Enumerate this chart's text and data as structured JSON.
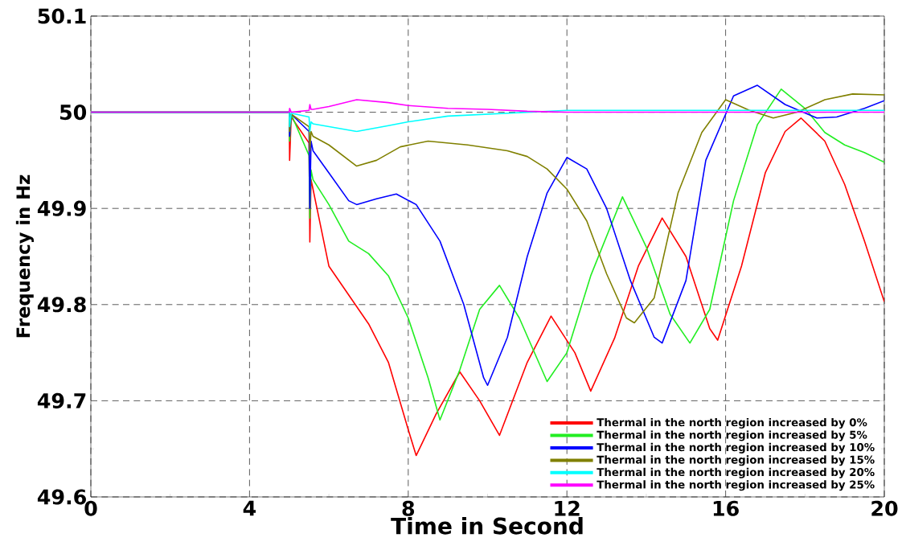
{
  "chart_data": {
    "type": "line",
    "xlabel": "Time in Second",
    "ylabel": "Frequency in Hz",
    "xlim": [
      0,
      20
    ],
    "ylim": [
      49.6,
      50.1
    ],
    "xticks": [
      0,
      4,
      8,
      12,
      16,
      20
    ],
    "yticks": [
      49.6,
      49.7,
      49.8,
      49.9,
      50,
      50.1
    ],
    "grid": true,
    "legend": "bottom right",
    "series": [
      {
        "name": "Thermal in the north region increased by 0%",
        "color": "#ff0000",
        "x": [
          0,
          5,
          5.01,
          5.05,
          5.5,
          5.52,
          5.55,
          5.6,
          6,
          6.5,
          7,
          7.5,
          8,
          8.2,
          8.7,
          9.3,
          9.8,
          10.3,
          11,
          11.6,
          12.2,
          12.6,
          13.2,
          13.8,
          14.4,
          15,
          15.6,
          15.8,
          16.4,
          17,
          17.5,
          17.9,
          18.5,
          19,
          19.5,
          20
        ],
        "values": [
          50,
          50,
          49.95,
          49.995,
          49.968,
          49.865,
          49.93,
          49.92,
          49.84,
          49.81,
          49.78,
          49.74,
          49.67,
          49.643,
          49.686,
          49.73,
          49.7,
          49.664,
          49.74,
          49.788,
          49.75,
          49.71,
          49.765,
          49.84,
          49.89,
          49.85,
          49.775,
          49.763,
          49.84,
          49.937,
          49.98,
          49.994,
          49.97,
          49.925,
          49.866,
          49.803
        ]
      },
      {
        "name": "Thermal in the north region increased by 5%",
        "color": "#22ee22",
        "x": [
          0,
          5,
          5.01,
          5.05,
          5.5,
          5.52,
          5.55,
          5.6,
          6,
          6.5,
          7,
          7.5,
          8,
          8.5,
          8.8,
          9.3,
          9.8,
          10.3,
          10.8,
          11.5,
          12,
          12.6,
          13.4,
          14,
          14.6,
          15.1,
          15.6,
          16.2,
          16.8,
          17.4,
          18,
          18.5,
          19,
          19.5,
          20
        ],
        "values": [
          50,
          50,
          49.97,
          49.998,
          49.955,
          49.89,
          49.94,
          49.93,
          49.904,
          49.866,
          49.853,
          49.83,
          49.786,
          49.724,
          49.68,
          49.732,
          49.795,
          49.82,
          49.786,
          49.72,
          49.75,
          49.83,
          49.912,
          49.86,
          49.79,
          49.76,
          49.795,
          49.908,
          49.987,
          50.024,
          50.004,
          49.979,
          49.966,
          49.958,
          49.948
        ]
      },
      {
        "name": "Thermal in the north region increased by 10%",
        "color": "#0000ff",
        "x": [
          0,
          5,
          5.01,
          5.05,
          5.5,
          5.52,
          5.55,
          5.6,
          6,
          6.5,
          6.7,
          7.2,
          7.7,
          8.2,
          8.8,
          9.4,
          9.9,
          10,
          10.5,
          11,
          11.5,
          12,
          12.5,
          13,
          13.6,
          14.2,
          14.4,
          15,
          15.5,
          16.2,
          16.8,
          17.5,
          18.3,
          18.8,
          19.5,
          20
        ],
        "values": [
          50,
          50,
          49.975,
          49.998,
          49.98,
          49.9,
          49.97,
          49.96,
          49.937,
          49.908,
          49.904,
          49.91,
          49.915,
          49.904,
          49.866,
          49.8,
          49.724,
          49.716,
          49.766,
          49.85,
          49.916,
          49.953,
          49.941,
          49.9,
          49.825,
          49.766,
          49.76,
          49.825,
          49.95,
          50.017,
          50.028,
          50.008,
          49.994,
          49.995,
          50.004,
          50.012
        ]
      },
      {
        "name": "Thermal in the north region increased by 15%",
        "color": "#808000",
        "x": [
          0,
          5,
          5.01,
          5.05,
          5.5,
          5.52,
          5.55,
          5.6,
          6,
          6.7,
          7.2,
          7.8,
          8.5,
          9.5,
          10.5,
          11,
          11.5,
          12,
          12.5,
          13,
          13.5,
          13.7,
          14.2,
          14.8,
          15.4,
          16,
          16.6,
          17.2,
          17.8,
          18.5,
          19.2,
          20
        ],
        "values": [
          50,
          50,
          49.98,
          49.998,
          49.985,
          49.96,
          49.98,
          49.975,
          49.966,
          49.944,
          49.95,
          49.964,
          49.97,
          49.966,
          49.96,
          49.954,
          49.941,
          49.92,
          49.887,
          49.832,
          49.786,
          49.781,
          49.807,
          49.916,
          49.979,
          50.013,
          50.002,
          49.994,
          50,
          50.013,
          50.019,
          50.018
        ]
      },
      {
        "name": "Thermal in the north region increased by 20%",
        "color": "#00ffff",
        "x": [
          0,
          5,
          5.01,
          5.05,
          5.5,
          5.52,
          5.55,
          5.6,
          6.7,
          7.5,
          8,
          9,
          10.5,
          12,
          16,
          20
        ],
        "values": [
          50,
          50,
          49.985,
          49.999,
          49.995,
          49.98,
          49.99,
          49.988,
          49.98,
          49.986,
          49.99,
          49.996,
          49.999,
          50.002,
          50.002,
          50.002
        ]
      },
      {
        "name": "Thermal in the north region increased by 25%",
        "color": "#ff00ff",
        "x": [
          0,
          5,
          5.01,
          5.05,
          5.5,
          5.52,
          5.55,
          5.6,
          6,
          6.7,
          7.5,
          8,
          9,
          10,
          11,
          12,
          20
        ],
        "values": [
          50,
          50,
          50.004,
          50,
          50.002,
          50.008,
          50.003,
          50.003,
          50.006,
          50.013,
          50.01,
          50.007,
          50.004,
          50.003,
          50.001,
          50,
          50
        ]
      }
    ]
  }
}
